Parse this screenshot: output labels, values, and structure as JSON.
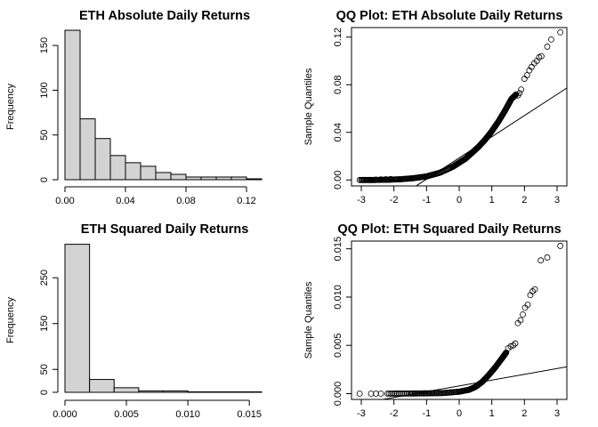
{
  "chart_data": [
    {
      "type": "bar",
      "title": "ETH Absolute Daily Returns",
      "xlabel": "",
      "ylabel": "Frequency",
      "bin_edges": [
        0,
        0.01,
        0.02,
        0.03,
        0.04,
        0.05,
        0.06,
        0.07,
        0.08,
        0.09,
        0.1,
        0.11,
        0.12,
        0.13
      ],
      "values": [
        167,
        68,
        46,
        27,
        19,
        15,
        8,
        6,
        3,
        3,
        3,
        3,
        1
      ],
      "xlim": [
        0,
        0.13
      ],
      "ylim": [
        0,
        170
      ],
      "xticks": [
        0,
        0.04,
        0.08,
        0.12
      ],
      "xtick_labels": [
        "0.00",
        "0.04",
        "0.08",
        "0.12"
      ],
      "yticks": [
        0,
        50,
        100,
        150
      ],
      "ytick_labels": [
        "0",
        "50",
        "100",
        "150"
      ],
      "grid": false,
      "bar_color": "#d3d3d3"
    },
    {
      "type": "scatter",
      "title": "QQ Plot: ETH Absolute Daily Returns",
      "xlabel": "",
      "ylabel": "Sample Quantiles",
      "xlim": [
        -3.3,
        3.3
      ],
      "ylim": [
        -0.005,
        0.128
      ],
      "xticks": [
        -3,
        -2,
        -1,
        0,
        1,
        2,
        3
      ],
      "xtick_labels": [
        "-3",
        "-2",
        "-1",
        "0",
        "1",
        "2",
        "3"
      ],
      "yticks": [
        0,
        0.04,
        0.08,
        0.12
      ],
      "ytick_labels": [
        "0.00",
        "0.04",
        "0.08",
        "0.12"
      ],
      "reference_line": {
        "intercept": 0.0185,
        "slope": 0.0178
      },
      "quantile_curve": [
        [
          -3,
          0
        ],
        [
          -2.6,
          0
        ],
        [
          -2.2,
          0.0002
        ],
        [
          -1.8,
          0.0006
        ],
        [
          -1.4,
          0.0015
        ],
        [
          -1.0,
          0.003
        ],
        [
          -0.6,
          0.006
        ],
        [
          -0.2,
          0.011
        ],
        [
          0.0,
          0.0145
        ],
        [
          0.2,
          0.018
        ],
        [
          0.4,
          0.023
        ],
        [
          0.6,
          0.028
        ],
        [
          0.8,
          0.034
        ],
        [
          1.0,
          0.041
        ],
        [
          1.2,
          0.049
        ],
        [
          1.4,
          0.058
        ],
        [
          1.6,
          0.068
        ],
        [
          1.75,
          0.072
        ]
      ],
      "points": [
        [
          -3.05,
          0
        ],
        [
          -2.7,
          0
        ],
        [
          -2.55,
          0.0003
        ],
        [
          -2.4,
          0.0005
        ],
        [
          -2.25,
          0.0006
        ],
        [
          -2.1,
          0.0008
        ],
        [
          1.8,
          0.071
        ],
        [
          1.85,
          0.073
        ],
        [
          1.9,
          0.076
        ],
        [
          2.0,
          0.085
        ],
        [
          2.08,
          0.088
        ],
        [
          2.15,
          0.092
        ],
        [
          2.22,
          0.095
        ],
        [
          2.3,
          0.098
        ],
        [
          2.38,
          0.1
        ],
        [
          2.45,
          0.103
        ],
        [
          2.52,
          0.104
        ],
        [
          2.7,
          0.112
        ],
        [
          2.82,
          0.118
        ],
        [
          3.1,
          0.124
        ]
      ],
      "grid": false
    },
    {
      "type": "bar",
      "title": "ETH Squared Daily Returns",
      "xlabel": "",
      "ylabel": "Frequency",
      "bin_edges": [
        0,
        0.002,
        0.004,
        0.006,
        0.008,
        0.01,
        0.012,
        0.014,
        0.016
      ],
      "values": [
        323,
        28,
        10,
        3,
        3,
        1,
        1,
        1
      ],
      "xlim": [
        0,
        0.016
      ],
      "ylim": [
        0,
        330
      ],
      "xticks": [
        0,
        0.005,
        0.01,
        0.015
      ],
      "xtick_labels": [
        "0.000",
        "0.005",
        "0.010",
        "0.015"
      ],
      "yticks": [
        0,
        50,
        150,
        250
      ],
      "ytick_labels": [
        "0",
        "50",
        "150",
        "250"
      ],
      "grid": false,
      "bar_color": "#d3d3d3"
    },
    {
      "type": "scatter",
      "title": "QQ Plot: ETH Squared Daily Returns",
      "xlabel": "",
      "ylabel": "Sample Quantiles",
      "xlim": [
        -3.3,
        3.3
      ],
      "ylim": [
        -0.0006,
        0.0158
      ],
      "xticks": [
        -3,
        -2,
        -1,
        0,
        1,
        2,
        3
      ],
      "xtick_labels": [
        "-3",
        "-2",
        "-1",
        "0",
        "1",
        "2",
        "3"
      ],
      "yticks": [
        0,
        0.005,
        0.01,
        0.015
      ],
      "ytick_labels": [
        "0.000",
        "0.005",
        "0.010",
        "0.015"
      ],
      "reference_line": {
        "intercept": 0.0008,
        "slope": 0.0006
      },
      "quantile_curve": [
        [
          -2.2,
          0
        ],
        [
          -1.5,
          1e-05
        ],
        [
          -1.0,
          3e-05
        ],
        [
          -0.5,
          6e-05
        ],
        [
          0.0,
          0.0002
        ],
        [
          0.3,
          0.0004
        ],
        [
          0.5,
          0.0007
        ],
        [
          0.7,
          0.0012
        ],
        [
          0.9,
          0.0019
        ],
        [
          1.1,
          0.0027
        ],
        [
          1.3,
          0.0036
        ],
        [
          1.45,
          0.0043
        ]
      ],
      "points": [
        [
          -3.05,
          0
        ],
        [
          -2.7,
          0
        ],
        [
          -2.55,
          0
        ],
        [
          -2.4,
          0
        ],
        [
          1.5,
          0.0047
        ],
        [
          1.58,
          0.0049
        ],
        [
          1.66,
          0.005
        ],
        [
          1.72,
          0.0052
        ],
        [
          1.8,
          0.0073
        ],
        [
          1.88,
          0.0076
        ],
        [
          1.95,
          0.0082
        ],
        [
          2.02,
          0.0089
        ],
        [
          2.1,
          0.0092
        ],
        [
          2.18,
          0.0102
        ],
        [
          2.25,
          0.0106
        ],
        [
          2.32,
          0.0108
        ],
        [
          2.5,
          0.0138
        ],
        [
          2.7,
          0.0141
        ],
        [
          3.1,
          0.0153
        ]
      ],
      "grid": false
    }
  ]
}
